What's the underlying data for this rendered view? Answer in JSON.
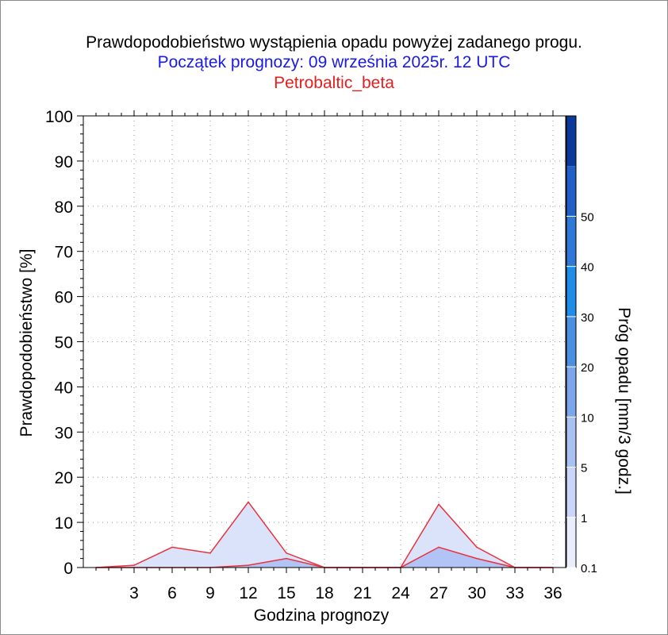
{
  "header": {
    "title": "Prawdopodobieństwo wystąpienia opadu powyżej zadanego progu.",
    "subtitle": "Początek prognozy: 09 września 2025r. 12 UTC",
    "model": "Petrobaltic_beta"
  },
  "colors": {
    "subtitle": "#1a1ae6",
    "model": "#e61e1e",
    "line": "#e8323c",
    "fill_0_1": "#dbe3fb",
    "fill_1": "#b1c4f5"
  },
  "colorbar": {
    "label": "Próg opadu [mm/3 godz.]",
    "levels": [
      "0.1",
      "1",
      "5",
      "10",
      "20",
      "30",
      "40",
      "50"
    ],
    "colors": [
      "#e9edfc",
      "#c9d6f7",
      "#a9c0f3",
      "#7ba6ec",
      "#4a90e2",
      "#1e8de8",
      "#2f78d8",
      "#1f5fc6",
      "#0b3a9a"
    ]
  },
  "chart_data": {
    "type": "area",
    "title": "Prawdopodobieństwo wystąpienia opadu powyżej zadanego progu.",
    "xlabel": "Godzina prognozy",
    "ylabel": "Prawdopodobieństwo [%]",
    "xlim": [
      -1,
      37
    ],
    "ylim": [
      0,
      100
    ],
    "xticks": [
      "3",
      "6",
      "9",
      "12",
      "15",
      "18",
      "21",
      "24",
      "27",
      "30",
      "33",
      "36"
    ],
    "yticks": [
      "0",
      "10",
      "20",
      "30",
      "40",
      "50",
      "60",
      "70",
      "80",
      "90",
      "100"
    ],
    "grid": true,
    "x": [
      0,
      3,
      6,
      9,
      12,
      15,
      18,
      21,
      24,
      27,
      30,
      33,
      36
    ],
    "series": [
      {
        "name": "0.1",
        "values": [
          0,
          0.5,
          4.5,
          3.2,
          14.5,
          3.2,
          0,
          0,
          0,
          14,
          4.5,
          0,
          0
        ]
      },
      {
        "name": "1",
        "values": [
          0,
          0,
          0,
          0,
          0.5,
          2,
          0,
          0,
          0,
          4.5,
          2,
          0,
          0
        ]
      }
    ]
  }
}
